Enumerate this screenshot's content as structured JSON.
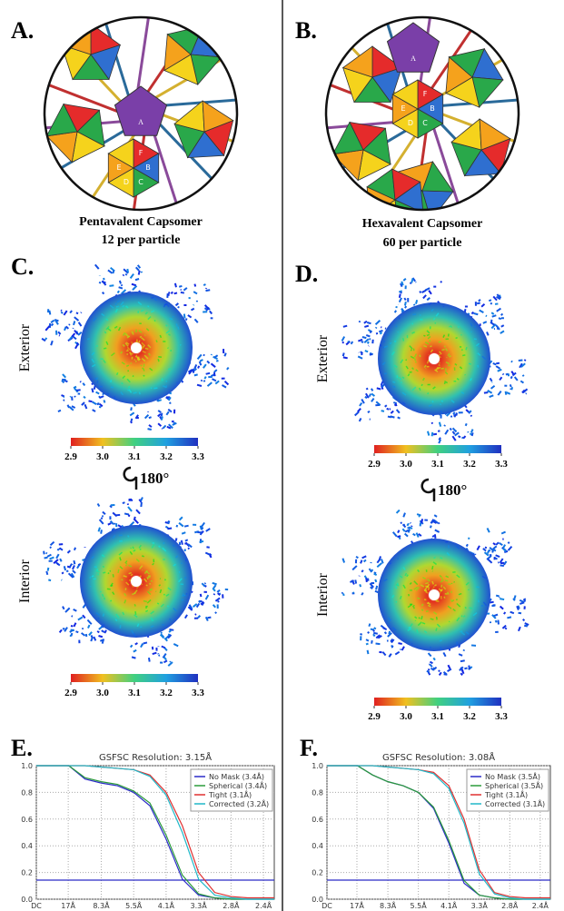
{
  "panel_a": {
    "label": "A.",
    "caption": [
      "Pentavalent Capsomer",
      "12 per particle"
    ],
    "subunits": [
      "A",
      "F",
      "B",
      "C",
      "D",
      "E"
    ]
  },
  "panel_b": {
    "label": "B.",
    "caption": [
      "Hexavalent Capsomer",
      "60 per particle"
    ],
    "subunits": [
      "A",
      "F",
      "B",
      "C",
      "D",
      "E"
    ]
  },
  "panel_c": {
    "label": "C.",
    "views": [
      "Exterior",
      "Interior"
    ],
    "rotation": "180°",
    "colorbar_ticks": [
      {
        "value": 2.9,
        "label": "2.9"
      },
      {
        "value": 3.0,
        "label": "3.0"
      },
      3.1,
      3.2,
      3.3
    ]
  },
  "panel_d": {
    "label": "D.",
    "views": [
      "Exterior",
      "Interior"
    ],
    "rotation": "180°",
    "colorbar_ticks": [
      {
        "value": 2.9,
        "label": "2.9"
      },
      {
        "value": 3.0,
        "label": "3.0"
      },
      3.1,
      3.2,
      3.3
    ]
  },
  "panel_e": {
    "label": "E."
  },
  "panel_f": {
    "label": "F."
  },
  "chart_data": [
    {
      "type": "line",
      "title": "GSFSC Resolution: 3.15Å",
      "x": [
        0,
        0.03,
        0.06,
        0.09,
        0.12,
        0.15,
        0.18,
        0.21,
        0.24,
        0.27,
        0.3,
        0.33,
        0.36,
        0.39,
        0.42,
        0.44
      ],
      "xlim": [
        0,
        0.44
      ],
      "ylim": [
        0,
        1
      ],
      "xticks": [
        {
          "value": 0,
          "label": "DC"
        },
        {
          "value": 0.059,
          "label": "17Å"
        },
        {
          "value": 0.12,
          "label": "8.3Å"
        },
        {
          "value": 0.18,
          "label": "5.5Å"
        },
        {
          "value": 0.24,
          "label": "4.1Å"
        },
        {
          "value": 0.3,
          "label": "3.3Å"
        },
        {
          "value": 0.36,
          "label": "2.8Å"
        },
        {
          "value": 0.42,
          "label": "2.4Å"
        }
      ],
      "yticks": [
        {
          "value": 0,
          "label": "0.0"
        },
        0.2,
        0.4,
        0.6,
        0.8,
        {
          "value": 1,
          "label": "1.0"
        }
      ],
      "threshold": 0.143,
      "grid": true,
      "series": [
        {
          "name": "No Mask (3.4Å)",
          "color": "#2b2bc8",
          "values": [
            1,
            1,
            1,
            0.9,
            0.87,
            0.85,
            0.8,
            0.7,
            0.45,
            0.15,
            0.03,
            0.01,
            0,
            0,
            0,
            0
          ]
        },
        {
          "name": "Spherical (3.4Å)",
          "color": "#2a9a3a",
          "values": [
            1,
            1,
            1,
            0.91,
            0.88,
            0.86,
            0.81,
            0.72,
            0.48,
            0.18,
            0.04,
            0.01,
            0,
            0,
            0,
            0
          ]
        },
        {
          "name": "Tight (3.1Å)",
          "color": "#e03030",
          "values": [
            1,
            1,
            1,
            1,
            0.99,
            0.98,
            0.97,
            0.93,
            0.8,
            0.55,
            0.2,
            0.05,
            0.02,
            0.01,
            0.01,
            0.01
          ]
        },
        {
          "name": "Corrected (3.2Å)",
          "color": "#20b8c8",
          "values": [
            1,
            1,
            1,
            1,
            0.99,
            0.98,
            0.97,
            0.92,
            0.78,
            0.5,
            0.15,
            0.03,
            0.01,
            0,
            0,
            0
          ]
        }
      ]
    },
    {
      "type": "line",
      "title": "GSFSC Resolution: 3.08Å",
      "x": [
        0,
        0.03,
        0.06,
        0.09,
        0.12,
        0.15,
        0.18,
        0.21,
        0.24,
        0.27,
        0.3,
        0.33,
        0.36,
        0.39,
        0.42,
        0.44
      ],
      "xlim": [
        0,
        0.44
      ],
      "ylim": [
        0,
        1
      ],
      "xticks": [
        {
          "value": 0,
          "label": "DC"
        },
        {
          "value": 0.059,
          "label": "17Å"
        },
        {
          "value": 0.12,
          "label": "8.3Å"
        },
        {
          "value": 0.18,
          "label": "5.5Å"
        },
        {
          "value": 0.24,
          "label": "4.1Å"
        },
        {
          "value": 0.3,
          "label": "3.3Å"
        },
        {
          "value": 0.36,
          "label": "2.8Å"
        },
        {
          "value": 0.42,
          "label": "2.4Å"
        }
      ],
      "yticks": [
        {
          "value": 0,
          "label": "0.0"
        },
        0.2,
        0.4,
        0.6,
        0.8,
        {
          "value": 1,
          "label": "1.0"
        }
      ],
      "threshold": 0.143,
      "grid": true,
      "series": [
        {
          "name": "No Mask (3.5Å)",
          "color": "#2b2bc8",
          "values": [
            1,
            1,
            1,
            0.93,
            0.88,
            0.85,
            0.8,
            0.68,
            0.42,
            0.12,
            0.03,
            0.01,
            0,
            0,
            0,
            0
          ]
        },
        {
          "name": "Spherical (3.5Å)",
          "color": "#2a9a3a",
          "values": [
            1,
            1,
            1,
            0.93,
            0.88,
            0.85,
            0.8,
            0.69,
            0.44,
            0.14,
            0.03,
            0.01,
            0,
            0,
            0,
            0
          ]
        },
        {
          "name": "Tight (3.1Å)",
          "color": "#e03030",
          "values": [
            1,
            1,
            1,
            1,
            0.99,
            0.98,
            0.97,
            0.95,
            0.85,
            0.6,
            0.22,
            0.05,
            0.02,
            0.01,
            0.01,
            0.01
          ]
        },
        {
          "name": "Corrected (3.1Å)",
          "color": "#20b8c8",
          "values": [
            1,
            1,
            1,
            1,
            0.99,
            0.98,
            0.97,
            0.94,
            0.83,
            0.57,
            0.19,
            0.04,
            0.01,
            0,
            0,
            0
          ]
        }
      ]
    }
  ]
}
